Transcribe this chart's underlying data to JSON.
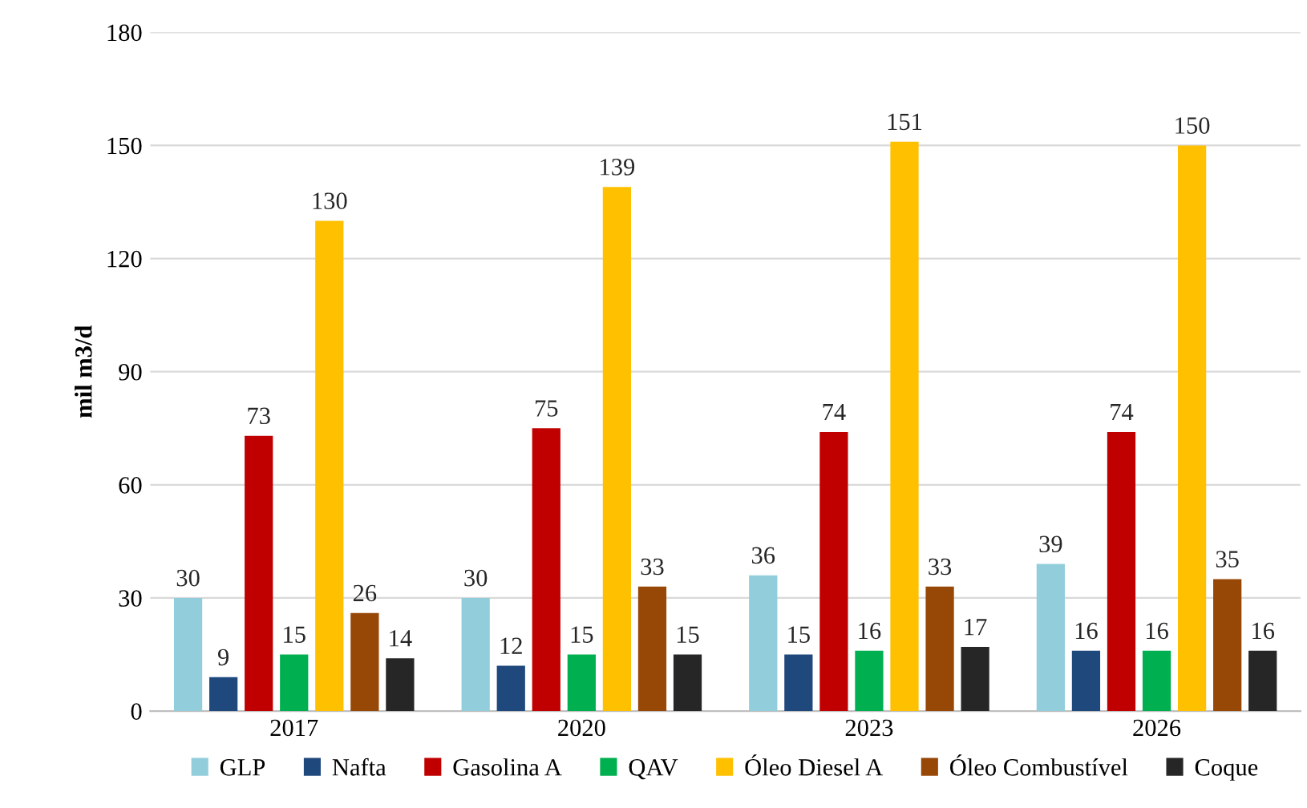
{
  "chart_data": {
    "type": "bar",
    "ylabel": "mil m3/d",
    "categories": [
      "2017",
      "2020",
      "2023",
      "2026"
    ],
    "series": [
      {
        "name": "GLP",
        "color": "#92cddc",
        "values": [
          30,
          30,
          36,
          39
        ]
      },
      {
        "name": "Nafta",
        "color": "#1f497d",
        "values": [
          9,
          12,
          15,
          16
        ]
      },
      {
        "name": "Gasolina A",
        "color": "#c00000",
        "values": [
          73,
          75,
          74,
          74
        ]
      },
      {
        "name": "QAV",
        "color": "#00b050",
        "values": [
          15,
          15,
          16,
          16
        ]
      },
      {
        "name": "Óleo Diesel A",
        "color": "#ffc000",
        "values": [
          130,
          139,
          151,
          150
        ]
      },
      {
        "name": "Óleo Combustível",
        "color": "#974706",
        "values": [
          26,
          33,
          33,
          35
        ]
      },
      {
        "name": "Coque",
        "color": "#262626",
        "values": [
          14,
          15,
          17,
          16
        ]
      }
    ],
    "ylim": [
      0,
      180
    ],
    "yticks": [
      0,
      30,
      60,
      90,
      120,
      150,
      180
    ],
    "grid": "y",
    "legend": "bottom",
    "data_labels": true
  }
}
